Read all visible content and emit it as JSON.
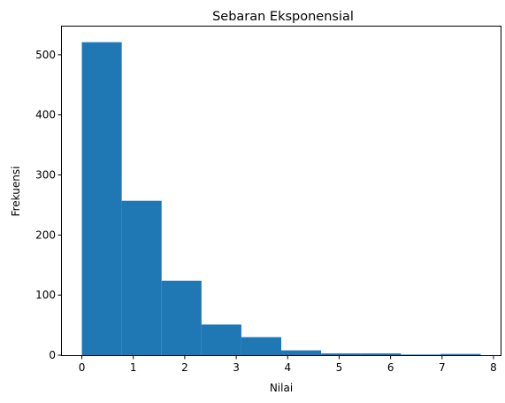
{
  "chart_data": {
    "type": "bar",
    "subtype": "histogram",
    "title": "Sebaran Eksponensial",
    "xlabel": "Nilai",
    "ylabel": "Frekuensi",
    "bin_edges": [
      0.0,
      0.775,
      1.55,
      2.325,
      3.1,
      3.875,
      4.65,
      5.425,
      6.2,
      6.975,
      7.75
    ],
    "values": [
      521,
      257,
      124,
      51,
      30,
      8,
      3,
      3,
      1,
      2
    ],
    "xlim": [
      -0.3875,
      8.1375
    ],
    "ylim": [
      0,
      547
    ],
    "xticks": [
      0,
      1,
      2,
      3,
      4,
      5,
      6,
      7,
      8
    ],
    "yticks": [
      0,
      100,
      200,
      300,
      400,
      500
    ],
    "bar_color": "#1f77b4",
    "grid": false
  }
}
